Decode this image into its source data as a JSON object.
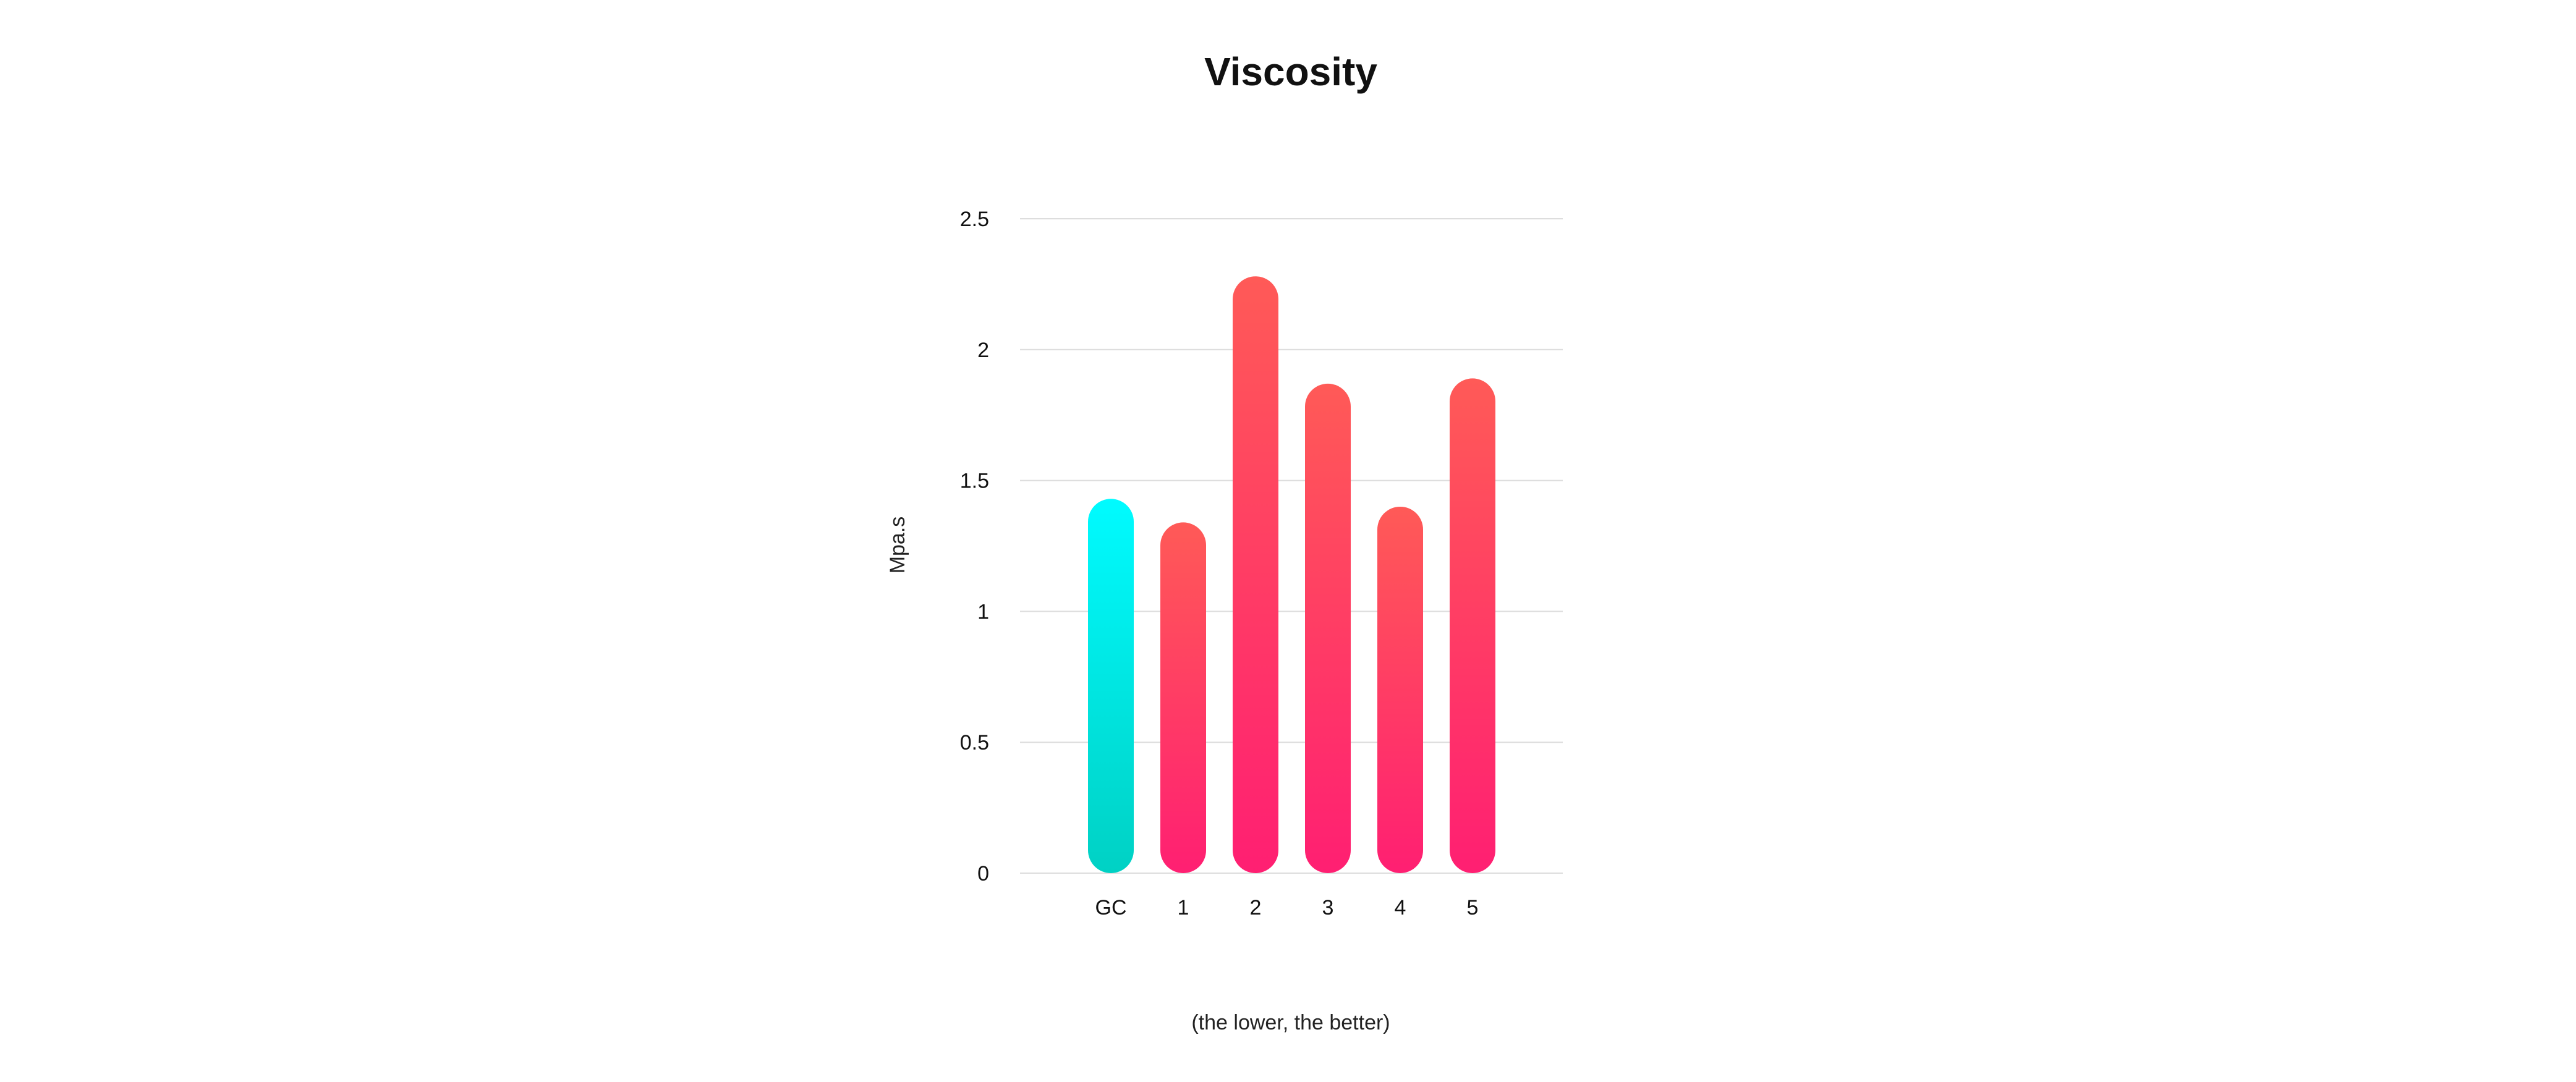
{
  "chart_data": {
    "type": "bar",
    "title": "Viscosity",
    "xlabel": "",
    "ylabel": "Mpa.s",
    "caption": "(the lower, the better)",
    "categories": [
      "GC",
      "1",
      "2",
      "3",
      "4",
      "5"
    ],
    "values": [
      1.43,
      1.34,
      2.28,
      1.87,
      1.4,
      1.89
    ],
    "ylim": [
      0,
      2.5
    ],
    "yticks": [
      "0",
      "0.5",
      "1",
      "1.5",
      "2",
      "2.5"
    ],
    "grid": true,
    "legend": "none",
    "colors": {
      "highlight_top": "#00FBFF",
      "highlight_bottom": "#00D1C4",
      "bar_top": "#FF5A57",
      "bar_bottom": "#FF1F72",
      "grid": "#DDDDDD",
      "text": "#111111"
    },
    "highlight_category": "GC"
  }
}
